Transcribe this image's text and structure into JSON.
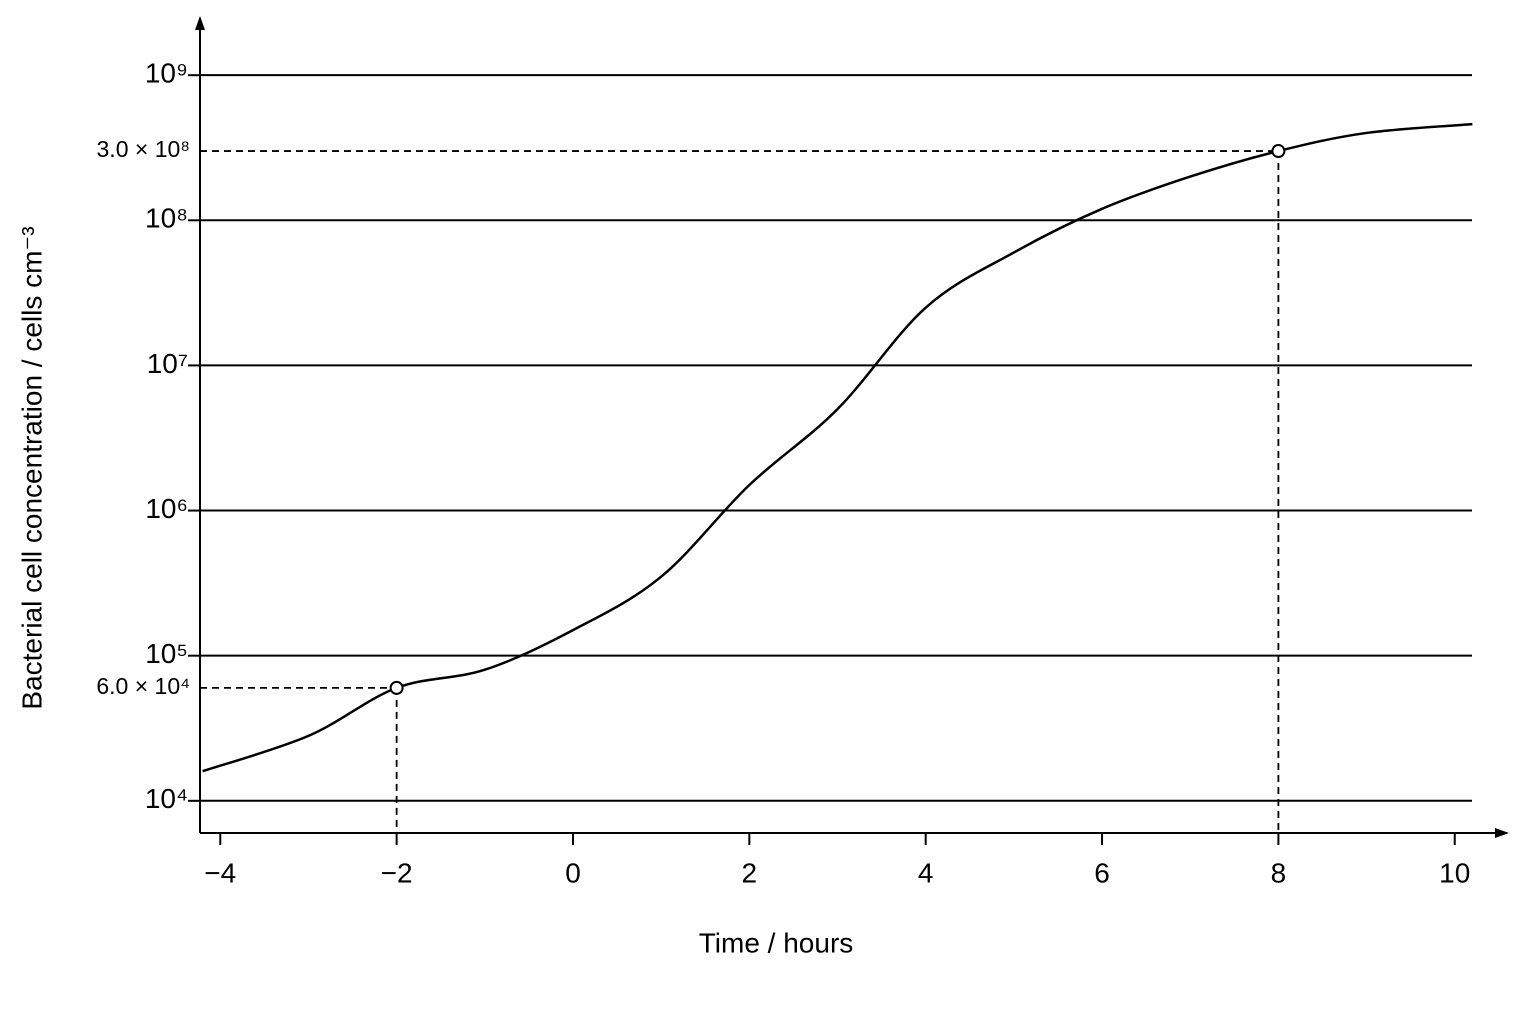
{
  "chart_data": {
    "type": "line",
    "log_scale_y": true,
    "grid": true,
    "x_label": "Time / hours",
    "y_label": "Bacterial cell concentration / cells cm⁻³",
    "xlim": [
      -4.23,
      10.57
    ],
    "ylim": [
      6000,
      2400000000
    ],
    "xticks": [
      {
        "value": -4,
        "label": "−4"
      },
      {
        "value": -2,
        "label": "−2"
      },
      0,
      2,
      4,
      6,
      8,
      10
    ],
    "yticks": [
      {
        "value": 10000,
        "label": "10⁴"
      },
      {
        "value": 100000,
        "label": "10⁵"
      },
      {
        "value": 1000000,
        "label": "10⁶"
      },
      {
        "value": 10000000,
        "label": "10⁷"
      },
      {
        "value": 100000000,
        "label": "10⁸"
      },
      {
        "value": 1000000000,
        "label": "10⁹"
      }
    ],
    "series": [
      {
        "color": "#000000",
        "x": [
          -4.2,
          -3,
          -2,
          -1,
          0,
          1,
          2,
          3,
          4,
          5,
          6,
          7,
          8,
          9,
          10.2
        ],
        "values": [
          16000,
          28000,
          60000,
          80000,
          150000,
          350000,
          1500000,
          5000000,
          25000000,
          60000000,
          120000000,
          200000000,
          300000000,
          400000000,
          460000000
        ]
      }
    ],
    "annotations": [
      {
        "x": -2,
        "y": 60000,
        "label": "6.0 × 10⁴"
      },
      {
        "x": 8,
        "y": 300000000,
        "label": "3.0 × 10⁸"
      }
    ]
  }
}
